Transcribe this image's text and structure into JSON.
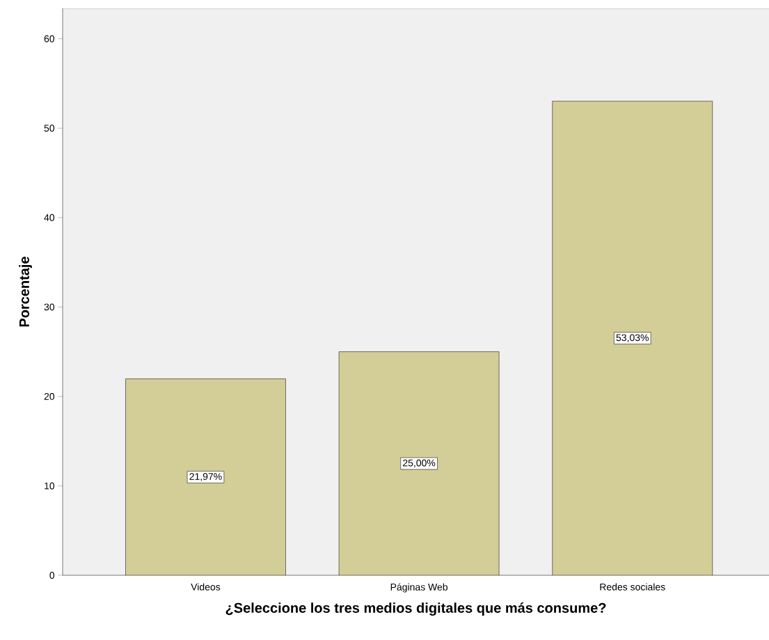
{
  "chart_data": {
    "type": "bar",
    "xlabel": "¿Seleccione los tres medios digitales que más consume?",
    "ylabel": "Porcentaje",
    "categories": [
      "Videos",
      "Páginas Web",
      "Redes sociales"
    ],
    "values": [
      21.97,
      25.0,
      53.03
    ],
    "value_labels": [
      "21,97%",
      "25,00%",
      "53,03%"
    ],
    "color": "#d3ce97",
    "ylim": [
      0,
      63.4
    ],
    "yticks": [
      0,
      10,
      20,
      30,
      40,
      50,
      60
    ],
    "grid": false
  }
}
